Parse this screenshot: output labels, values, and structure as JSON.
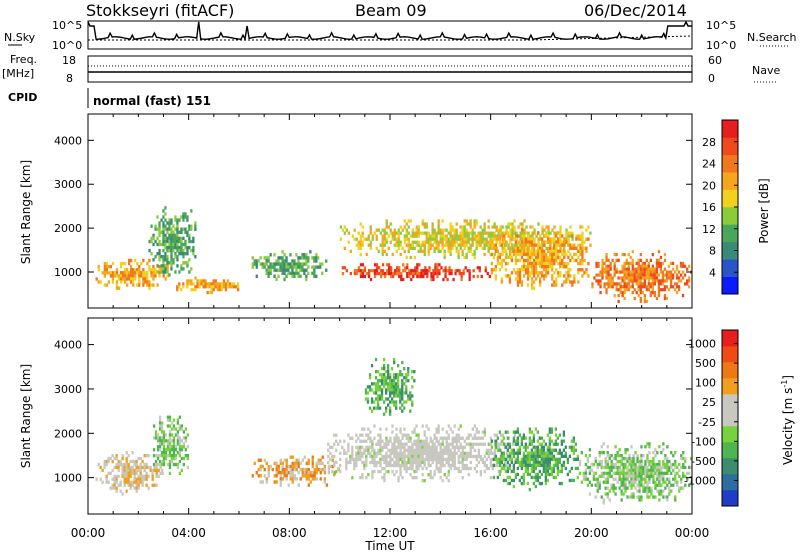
{
  "header": {
    "station": "Stokkseyri (fitACF)",
    "beam": "Beam 09",
    "date": "06/Dec/2014"
  },
  "noise_panel": {
    "left_label": "N.Sky",
    "right_label": "N.Search",
    "left_ticks": [
      "10^5",
      "10^0"
    ],
    "right_ticks": [
      "10^5",
      "10^0"
    ]
  },
  "freq_panel": {
    "left_label_line1": "Freq.",
    "left_label_line2": "[MHz]",
    "right_label": "Nave",
    "left_ticks": [
      "18",
      "8"
    ],
    "right_ticks": [
      "60",
      "0"
    ]
  },
  "cpid": {
    "label": "CPID",
    "value": "normal (fast) 151"
  },
  "time_axis": {
    "label": "Time UT",
    "ticks": [
      "00:00",
      "04:00",
      "08:00",
      "12:00",
      "16:00",
      "20:00",
      "00:00"
    ]
  },
  "slant_range": {
    "label": "Slant Range [km]",
    "ticks": [
      "1000",
      "2000",
      "3000",
      "4000"
    ]
  },
  "power_bar": {
    "label": "Power [dB]",
    "ticks": [
      "4",
      "8",
      "12",
      "16",
      "20",
      "24",
      "28"
    ],
    "colors": [
      "#0a1cff",
      "#2a55c8",
      "#3a8a7a",
      "#4aa65a",
      "#8ccc3c",
      "#f0d21e",
      "#f5a51e",
      "#f2781e",
      "#ee4a1e",
      "#e61e1e"
    ]
  },
  "velocity_bar": {
    "label": "Velocity [m s",
    "label_sup": "-1",
    "label_end": "]",
    "ticks": [
      "1000",
      "500",
      "100",
      "25",
      "-25",
      "-100",
      "-500",
      "-1000"
    ],
    "colors": [
      "#1e3cc8",
      "#2d6ea0",
      "#3c8c6e",
      "#50b450",
      "#78d23c",
      "#c8c8c0",
      "#c8c8c0",
      "#f0a01e",
      "#f07814",
      "#f04b14",
      "#e61e1e"
    ]
  },
  "chart_data": [
    {
      "type": "heatmap",
      "title": "Power",
      "xlabel": "Time UT",
      "ylabel": "Slant Range [km]",
      "xlim": [
        "00:00",
        "24:00"
      ],
      "ylim": [
        180,
        4600
      ],
      "colorbar": {
        "label": "Power [dB]",
        "range": [
          0,
          32
        ]
      },
      "regions": [
        {
          "t0": 0.3,
          "t1": 3.2,
          "r0": 600,
          "r1": 1300,
          "value": 22
        },
        {
          "t0": 2.4,
          "t1": 4.3,
          "r0": 900,
          "r1": 2500,
          "value": 10
        },
        {
          "t0": 3.5,
          "t1": 6.0,
          "r0": 500,
          "r1": 900,
          "value": 22
        },
        {
          "t0": 6.5,
          "t1": 9.5,
          "r0": 800,
          "r1": 1500,
          "value": 10
        },
        {
          "t0": 10.0,
          "t1": 16.0,
          "r0": 800,
          "r1": 1200,
          "value": 28
        },
        {
          "t0": 10.0,
          "t1": 20.0,
          "r0": 1300,
          "r1": 2200,
          "value": 16
        },
        {
          "t0": 16.0,
          "t1": 20.0,
          "r0": 600,
          "r1": 2000,
          "value": 22
        },
        {
          "t0": 20.0,
          "t1": 24.0,
          "r0": 300,
          "r1": 1500,
          "value": 24
        }
      ]
    },
    {
      "type": "heatmap",
      "title": "Velocity",
      "xlabel": "Time UT",
      "ylabel": "Slant Range [km]",
      "xlim": [
        "00:00",
        "24:00"
      ],
      "ylim": [
        180,
        4600
      ],
      "colorbar": {
        "label": "Velocity [m s-1]",
        "range": [
          -1000,
          1000
        ]
      },
      "regions": [
        {
          "t0": 0.3,
          "t1": 3.0,
          "r0": 600,
          "r1": 1600,
          "value": 100
        },
        {
          "t0": 2.5,
          "t1": 4.0,
          "r0": 1000,
          "r1": 2400,
          "value": -100
        },
        {
          "t0": 6.5,
          "t1": 10.0,
          "r0": 800,
          "r1": 1500,
          "value": 300
        },
        {
          "t0": 9.5,
          "t1": 17.0,
          "r0": 900,
          "r1": 2200,
          "value": 0
        },
        {
          "t0": 11.0,
          "t1": 13.0,
          "r0": 2400,
          "r1": 3700,
          "value": -300
        },
        {
          "t0": 16.0,
          "t1": 19.5,
          "r0": 700,
          "r1": 2200,
          "value": -400
        },
        {
          "t0": 19.5,
          "t1": 24.0,
          "r0": 400,
          "r1": 1800,
          "value": -200
        }
      ]
    }
  ]
}
